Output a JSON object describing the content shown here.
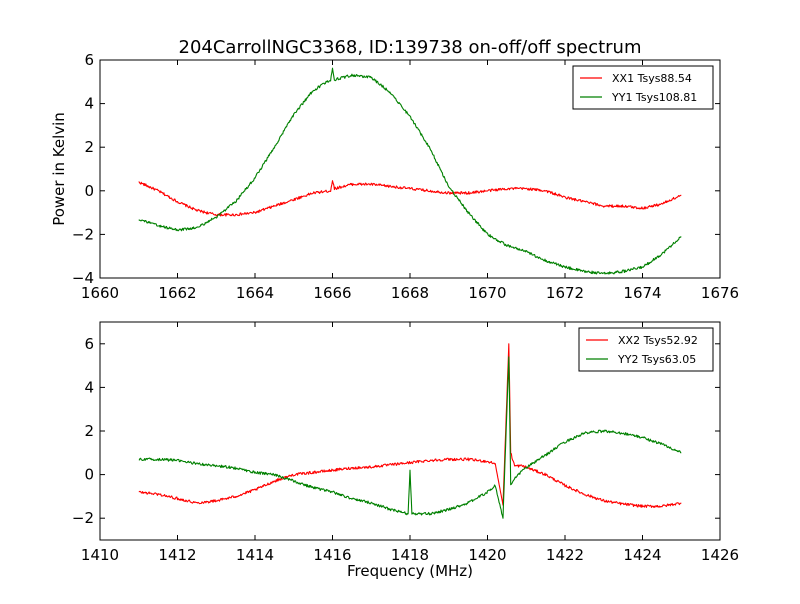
{
  "figure": {
    "title": "204CarrollNGC3368, ID:139738 on-off/off spectrum",
    "ylabel": "Power in Kelvin",
    "xlabel": "Frequency (MHz)"
  },
  "chart_data": [
    {
      "type": "line",
      "title": "204CarrollNGC3368, ID:139738 on-off/off spectrum",
      "xlabel": "",
      "ylabel": "Power in Kelvin",
      "xlim": [
        1660,
        1676
      ],
      "ylim": [
        -4,
        6
      ],
      "xticks": [
        1660,
        1662,
        1664,
        1666,
        1668,
        1670,
        1672,
        1674,
        1676
      ],
      "yticks": [
        -4,
        -2,
        0,
        2,
        4,
        6
      ],
      "xtick_labels": [
        "1660",
        "1662",
        "1664",
        "1666",
        "1668",
        "1670",
        "1672",
        "1674",
        "1676"
      ],
      "ytick_labels": [
        "−4",
        "−2",
        "0",
        "2",
        "4",
        "6"
      ],
      "legend_position": "top-right",
      "series": [
        {
          "name": "XX1 Tsys88.54",
          "color": "#ff0000",
          "x": [
            1661.0,
            1661.5,
            1662.0,
            1662.5,
            1663.0,
            1663.5,
            1664.0,
            1664.5,
            1665.0,
            1665.5,
            1665.95,
            1666.0,
            1666.05,
            1666.5,
            1667.0,
            1667.5,
            1668.0,
            1668.5,
            1669.0,
            1669.5,
            1670.0,
            1670.5,
            1671.0,
            1671.5,
            1672.0,
            1672.5,
            1673.0,
            1673.5,
            1674.0,
            1674.5,
            1675.0
          ],
          "y": [
            0.4,
            0.0,
            -0.5,
            -0.9,
            -1.1,
            -1.1,
            -1.0,
            -0.7,
            -0.4,
            -0.1,
            0.0,
            0.5,
            0.1,
            0.3,
            0.3,
            0.2,
            0.1,
            0.0,
            -0.1,
            -0.1,
            0.0,
            0.1,
            0.1,
            0.0,
            -0.3,
            -0.5,
            -0.7,
            -0.7,
            -0.8,
            -0.6,
            -0.2
          ]
        },
        {
          "name": "YY1 Tsys108.81",
          "color": "#008000",
          "x": [
            1661.0,
            1661.5,
            1662.0,
            1662.5,
            1663.0,
            1663.5,
            1664.0,
            1664.5,
            1665.0,
            1665.5,
            1665.95,
            1666.0,
            1666.05,
            1666.5,
            1667.0,
            1667.5,
            1668.0,
            1668.5,
            1669.0,
            1669.5,
            1670.0,
            1670.5,
            1671.0,
            1671.5,
            1672.0,
            1672.5,
            1673.0,
            1673.5,
            1674.0,
            1674.5,
            1675.0
          ],
          "y": [
            -1.3,
            -1.6,
            -1.8,
            -1.7,
            -1.2,
            -0.5,
            0.6,
            2.0,
            3.5,
            4.6,
            5.1,
            5.6,
            5.1,
            5.3,
            5.2,
            4.5,
            3.4,
            2.0,
            0.2,
            -1.0,
            -2.0,
            -2.5,
            -2.8,
            -3.2,
            -3.5,
            -3.7,
            -3.8,
            -3.7,
            -3.5,
            -2.9,
            -2.1
          ]
        }
      ]
    },
    {
      "type": "line",
      "title": "",
      "xlabel": "Frequency (MHz)",
      "ylabel": "",
      "xlim": [
        1410,
        1426
      ],
      "ylim": [
        -3,
        7
      ],
      "xticks": [
        1410,
        1412,
        1414,
        1416,
        1418,
        1420,
        1422,
        1424,
        1426
      ],
      "yticks": [
        -2,
        0,
        2,
        4,
        6
      ],
      "xtick_labels": [
        "1410",
        "1412",
        "1414",
        "1416",
        "1418",
        "1420",
        "1422",
        "1424",
        "1426"
      ],
      "ytick_labels": [
        "−2",
        "0",
        "2",
        "4",
        "6"
      ],
      "legend_position": "top-right",
      "series": [
        {
          "name": "XX2 Tsys52.92",
          "color": "#ff0000",
          "x": [
            1411.0,
            1411.5,
            1412.0,
            1412.5,
            1413.0,
            1413.5,
            1414.0,
            1414.5,
            1415.0,
            1415.5,
            1416.0,
            1416.5,
            1417.0,
            1417.5,
            1418.0,
            1418.5,
            1419.0,
            1419.5,
            1420.0,
            1420.2,
            1420.4,
            1420.55,
            1420.6,
            1420.7,
            1420.9,
            1421.5,
            1422.0,
            1422.5,
            1423.0,
            1423.5,
            1424.0,
            1424.5,
            1425.0
          ],
          "y": [
            -0.8,
            -0.9,
            -1.1,
            -1.3,
            -1.2,
            -1.0,
            -0.7,
            -0.3,
            0.0,
            0.1,
            0.2,
            0.3,
            0.35,
            0.45,
            0.55,
            0.65,
            0.7,
            0.7,
            0.6,
            0.5,
            -1.4,
            6.0,
            1.0,
            0.4,
            0.4,
            0.0,
            -0.5,
            -0.9,
            -1.2,
            -1.35,
            -1.45,
            -1.45,
            -1.3
          ]
        },
        {
          "name": "YY2 Tsys63.05",
          "color": "#008000",
          "x": [
            1411.0,
            1411.5,
            1412.0,
            1412.5,
            1413.0,
            1413.5,
            1414.0,
            1414.5,
            1415.0,
            1415.5,
            1416.0,
            1416.5,
            1417.0,
            1417.5,
            1417.95,
            1418.0,
            1418.05,
            1418.5,
            1419.0,
            1419.5,
            1420.0,
            1420.2,
            1420.4,
            1420.55,
            1420.6,
            1420.7,
            1420.9,
            1421.5,
            1422.0,
            1422.5,
            1423.0,
            1423.5,
            1424.0,
            1424.5,
            1425.0
          ],
          "y": [
            0.7,
            0.7,
            0.65,
            0.5,
            0.4,
            0.3,
            0.1,
            0.0,
            -0.3,
            -0.6,
            -0.8,
            -1.1,
            -1.3,
            -1.6,
            -1.8,
            0.2,
            -1.8,
            -1.8,
            -1.6,
            -1.3,
            -0.8,
            -0.5,
            -2.0,
            5.4,
            -0.5,
            -0.2,
            0.2,
            0.9,
            1.5,
            1.9,
            2.0,
            1.9,
            1.7,
            1.4,
            1.0
          ]
        }
      ]
    }
  ]
}
